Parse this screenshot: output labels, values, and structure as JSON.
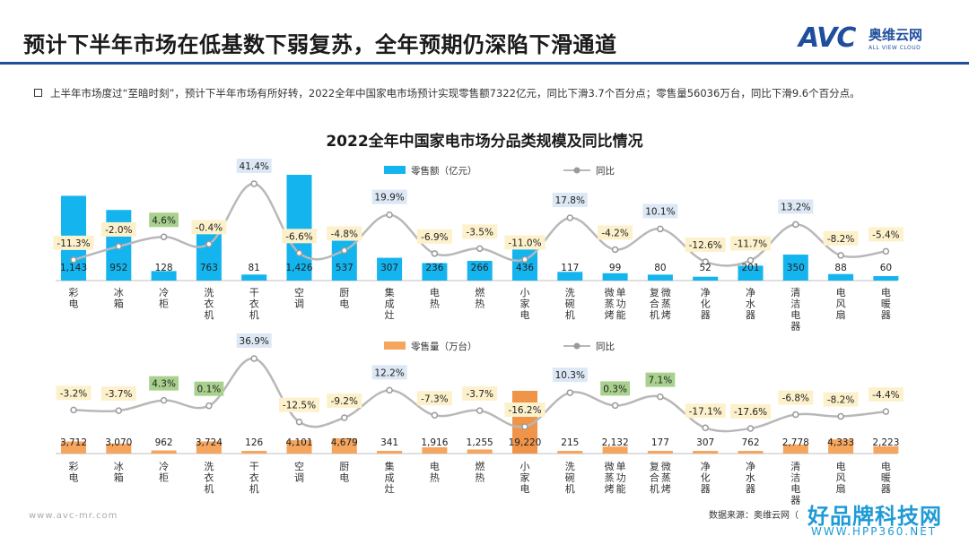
{
  "header": {
    "title": "预计下半年市场在低基数下弱复苏，全年预期仍深陷下滑通道",
    "logo_mark": "AVC",
    "logo_cn": "奥维云网",
    "logo_en": "ALL VIEW CLOUD"
  },
  "bullet_text": "上半年市场度过“至暗时刻”，预计下半年市场有所好转，2022全年中国家电市场预计实现零售额7322亿元，同比下滑3.7个百分点；零售量56036万台，同比下滑9.6个百分点。",
  "footer": {
    "source": "数据来源：奥维云网（",
    "site": "www.avc-mr.com",
    "watermark_cn": "好品牌科技网",
    "watermark_en": "WWW.HPP360.NET"
  },
  "colors": {
    "accent": "#1f4e9c",
    "bar_top": "#14b4ee",
    "bar_bottom": "#f5a55d",
    "bar_bottom_highlight": "#f0944a",
    "yoy_line": "#b8b8b8",
    "label_neg_bg": "#fdf1cc",
    "label_pos_bg": "#dce8f5",
    "label_green_bg": "#a9d18e"
  },
  "chart_data": [
    {
      "type": "bar",
      "title": "2022全年中国家电市场分品类规模及同比情况",
      "categories": [
        "彩电",
        "冰箱",
        "冷柜",
        "洗衣机",
        "干衣机",
        "空调",
        "厨电",
        "集成灶",
        "电热",
        "燃热",
        "小家电",
        "洗碗机",
        "微蒸烤 单功能",
        "复合机 微蒸烤",
        "净化器",
        "净水器",
        "清洁电器",
        "电风扇",
        "电暖器"
      ],
      "legend": [
        "零售额（亿元）",
        "同比"
      ],
      "series": [
        {
          "name": "零售额（亿元）",
          "values": [
            1143,
            952,
            128,
            763,
            81,
            1426,
            537,
            307,
            236,
            266,
            436,
            117,
            99,
            80,
            52,
            201,
            350,
            88,
            60
          ],
          "labels": [
            "1,143",
            "952",
            "128",
            "763",
            "81",
            "1,426",
            "537",
            "307",
            "236",
            "266",
            "436",
            "117",
            "99",
            "80",
            "52",
            "201",
            "350",
            "88",
            "60"
          ]
        },
        {
          "name": "同比",
          "values": [
            -11.3,
            -2.0,
            4.6,
            -0.4,
            41.4,
            -6.6,
            -4.8,
            19.9,
            -6.9,
            -3.5,
            -11.0,
            17.8,
            -4.2,
            10.1,
            -12.6,
            -11.7,
            13.2,
            -8.2,
            -5.4
          ],
          "labels": [
            "-11.3%",
            "-2.0%",
            "4.6%",
            "-0.4%",
            "41.4%",
            "-6.6%",
            "-4.8%",
            "19.9%",
            "-6.9%",
            "-3.5%",
            "-11.0%",
            "17.8%",
            "-4.2%",
            "10.1%",
            "-12.6%",
            "-11.7%",
            "13.2%",
            "-8.2%",
            "-5.4%"
          ]
        }
      ],
      "yoy_marked": [
        false,
        false,
        false,
        false,
        false,
        true,
        true,
        false,
        false,
        false,
        false,
        false,
        true,
        true,
        false,
        true,
        true,
        true,
        false
      ]
    },
    {
      "type": "bar",
      "categories": [
        "彩电",
        "冰箱",
        "冷柜",
        "洗衣机",
        "干衣机",
        "空调",
        "厨电",
        "集成灶",
        "电热",
        "燃热",
        "小家电",
        "洗碗机",
        "微蒸烤 单功能",
        "复合机 微蒸烤",
        "净化器",
        "净水器",
        "清洁电器",
        "电风扇",
        "电暖器"
      ],
      "legend": [
        "零售量（万台）",
        "同比"
      ],
      "series": [
        {
          "name": "零售量（万台）",
          "values": [
            3712,
            3070,
            962,
            3724,
            126,
            4101,
            4679,
            341,
            1916,
            1255,
            19220,
            215,
            2132,
            177,
            307,
            762,
            2778,
            4333,
            2223
          ],
          "labels": [
            "3,712",
            "3,070",
            "962",
            "3,724",
            "126",
            "4,101",
            "4,679",
            "341",
            "1,916",
            "1,255",
            "19,220",
            "215",
            "2,132",
            "177",
            "307",
            "762",
            "2,778",
            "4,333",
            "2,223"
          ]
        },
        {
          "name": "同比",
          "values": [
            -3.2,
            -3.7,
            4.3,
            0.1,
            36.9,
            -12.5,
            -9.2,
            12.2,
            -7.3,
            -3.7,
            -16.2,
            10.3,
            0.3,
            7.1,
            -17.1,
            -17.6,
            -6.8,
            -8.2,
            -4.4
          ],
          "labels": [
            "-3.2%",
            "-3.7%",
            "4.3%",
            "0.1%",
            "36.9%",
            "-12.5%",
            "-9.2%",
            "12.2%",
            "-7.3%",
            "-3.7%",
            "-16.2%",
            "10.3%",
            "0.3%",
            "7.1%",
            "-17.1%",
            "-17.6%",
            "-6.8%",
            "-8.2%",
            "-4.4%"
          ]
        }
      ],
      "yoy_marked": [
        false,
        false,
        false,
        false,
        false,
        true,
        true,
        false,
        false,
        false,
        false,
        false,
        true,
        true,
        false,
        true,
        true,
        true,
        false
      ]
    }
  ]
}
